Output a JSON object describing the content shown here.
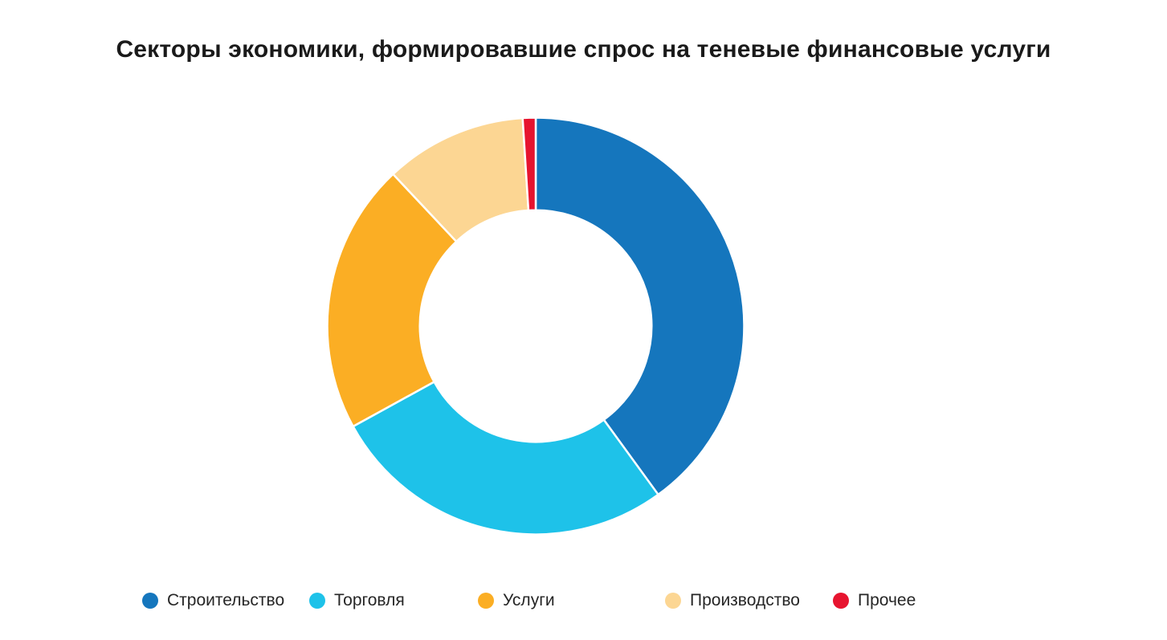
{
  "title": "Секторы экономики, формировавшие спрос на теневые финансовые услуги",
  "chart_data": {
    "type": "pie",
    "subtype": "donut",
    "title": "Секторы экономики, формировавшие спрос на теневые финансовые услуги",
    "categories": [
      "Строительство",
      "Торговля",
      "Услуги",
      "Производство",
      "Прочее"
    ],
    "values": [
      40,
      27,
      21,
      11,
      1
    ],
    "unit": "%",
    "colors": [
      "#1576BD",
      "#1EC2E9",
      "#FBAE24",
      "#FCD693",
      "#E7142F"
    ],
    "start_angle_deg": 0,
    "direction": "clockwise",
    "inner_radius_ratio": 0.556,
    "data_labels": false,
    "legend_position": "bottom"
  },
  "legend": {
    "items": [
      {
        "label": "Строительство",
        "color": "#1576BD"
      },
      {
        "label": "Торговля",
        "color": "#1EC2E9"
      },
      {
        "label": "Услуги",
        "color": "#FBAE24"
      },
      {
        "label": "Производство",
        "color": "#FCD693"
      },
      {
        "label": "Прочее",
        "color": "#E7142F"
      }
    ]
  },
  "style_colors": {
    "background": "#FFFFFF",
    "title_text": "#1A1A1A",
    "legend_text": "#262626",
    "slice_separator": "#FFFFFF"
  }
}
